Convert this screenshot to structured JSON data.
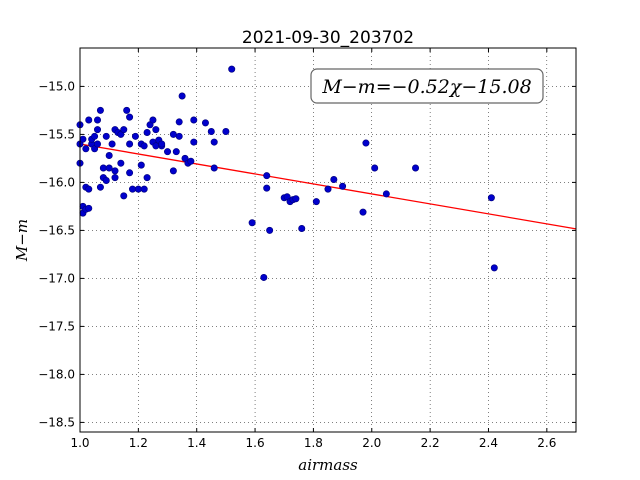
{
  "chart_data": {
    "type": "scatter",
    "title": "2021-09-30_203702",
    "xlabel": "airmass",
    "ylabel": "M−m",
    "xlim": [
      1.0,
      2.7
    ],
    "ylim": [
      -18.6,
      -14.6
    ],
    "y_inverted": true,
    "grid": true,
    "x_ticks": [
      1.0,
      1.2,
      1.4,
      1.6,
      1.8,
      2.0,
      2.2,
      2.4,
      2.6
    ],
    "x_tick_labels": [
      "1.0",
      "1.2",
      "1.4",
      "1.6",
      "1.8",
      "2.0",
      "2.2",
      "2.4",
      "2.6"
    ],
    "y_ticks": [
      -15.0,
      -15.5,
      -16.0,
      -16.5,
      -17.0,
      -17.5,
      -18.0,
      -18.5
    ],
    "y_tick_labels": [
      "−15.0",
      "−15.5",
      "−16.0",
      "−16.5",
      "−17.0",
      "−17.5",
      "−18.0",
      "−18.5"
    ],
    "annotation": "M−m=−0.52χ−15.08",
    "fit": {
      "slope": -0.52,
      "intercept": -15.08,
      "color": "#ff0000"
    },
    "point_color": "#0000cc",
    "points": [
      [
        1.0,
        -15.4
      ],
      [
        1.0,
        -15.6
      ],
      [
        1.0,
        -15.8
      ],
      [
        1.01,
        -16.25
      ],
      [
        1.01,
        -16.32
      ],
      [
        1.01,
        -15.55
      ],
      [
        1.02,
        -15.65
      ],
      [
        1.02,
        -16.05
      ],
      [
        1.02,
        -16.28
      ],
      [
        1.03,
        -16.07
      ],
      [
        1.03,
        -16.27
      ],
      [
        1.03,
        -15.35
      ],
      [
        1.04,
        -15.6
      ],
      [
        1.04,
        -15.55
      ],
      [
        1.05,
        -15.65
      ],
      [
        1.05,
        -15.52
      ],
      [
        1.06,
        -15.35
      ],
      [
        1.06,
        -15.45
      ],
      [
        1.06,
        -15.6
      ],
      [
        1.07,
        -15.25
      ],
      [
        1.07,
        -16.05
      ],
      [
        1.08,
        -15.95
      ],
      [
        1.08,
        -15.85
      ],
      [
        1.09,
        -15.52
      ],
      [
        1.09,
        -15.98
      ],
      [
        1.1,
        -15.72
      ],
      [
        1.1,
        -15.85
      ],
      [
        1.11,
        -15.6
      ],
      [
        1.12,
        -15.45
      ],
      [
        1.12,
        -15.95
      ],
      [
        1.12,
        -15.88
      ],
      [
        1.13,
        -15.48
      ],
      [
        1.14,
        -15.8
      ],
      [
        1.14,
        -15.5
      ],
      [
        1.15,
        -15.45
      ],
      [
        1.15,
        -16.14
      ],
      [
        1.16,
        -15.25
      ],
      [
        1.17,
        -15.32
      ],
      [
        1.17,
        -15.6
      ],
      [
        1.17,
        -15.9
      ],
      [
        1.18,
        -16.07
      ],
      [
        1.19,
        -15.52
      ],
      [
        1.2,
        -16.07
      ],
      [
        1.21,
        -15.82
      ],
      [
        1.21,
        -15.6
      ],
      [
        1.22,
        -16.07
      ],
      [
        1.22,
        -15.62
      ],
      [
        1.23,
        -15.48
      ],
      [
        1.23,
        -15.95
      ],
      [
        1.24,
        -15.4
      ],
      [
        1.25,
        -15.58
      ],
      [
        1.25,
        -15.35
      ],
      [
        1.26,
        -15.62
      ],
      [
        1.26,
        -15.45
      ],
      [
        1.27,
        -15.56
      ],
      [
        1.28,
        -15.62
      ],
      [
        1.28,
        -15.6
      ],
      [
        1.3,
        -15.68
      ],
      [
        1.32,
        -15.88
      ],
      [
        1.32,
        -15.5
      ],
      [
        1.33,
        -15.68
      ],
      [
        1.34,
        -15.37
      ],
      [
        1.34,
        -15.52
      ],
      [
        1.35,
        -15.1
      ],
      [
        1.36,
        -15.75
      ],
      [
        1.37,
        -15.8
      ],
      [
        1.38,
        -15.78
      ],
      [
        1.39,
        -15.35
      ],
      [
        1.39,
        -15.58
      ],
      [
        1.43,
        -15.38
      ],
      [
        1.45,
        -15.47
      ],
      [
        1.46,
        -15.85
      ],
      [
        1.46,
        -15.58
      ],
      [
        1.5,
        -15.47
      ],
      [
        1.52,
        -14.82
      ],
      [
        1.59,
        -16.42
      ],
      [
        1.63,
        -16.99
      ],
      [
        1.64,
        -15.93
      ],
      [
        1.64,
        -16.06
      ],
      [
        1.65,
        -16.5
      ],
      [
        1.7,
        -16.16
      ],
      [
        1.71,
        -16.15
      ],
      [
        1.72,
        -16.2
      ],
      [
        1.73,
        -16.18
      ],
      [
        1.74,
        -16.17
      ],
      [
        1.76,
        -16.48
      ],
      [
        1.81,
        -16.2
      ],
      [
        1.85,
        -16.07
      ],
      [
        1.87,
        -15.97
      ],
      [
        1.9,
        -16.04
      ],
      [
        1.97,
        -16.31
      ],
      [
        1.98,
        -15.59
      ],
      [
        2.01,
        -15.85
      ],
      [
        2.05,
        -16.12
      ],
      [
        2.15,
        -15.85
      ],
      [
        2.41,
        -16.16
      ],
      [
        2.42,
        -16.89
      ]
    ]
  }
}
